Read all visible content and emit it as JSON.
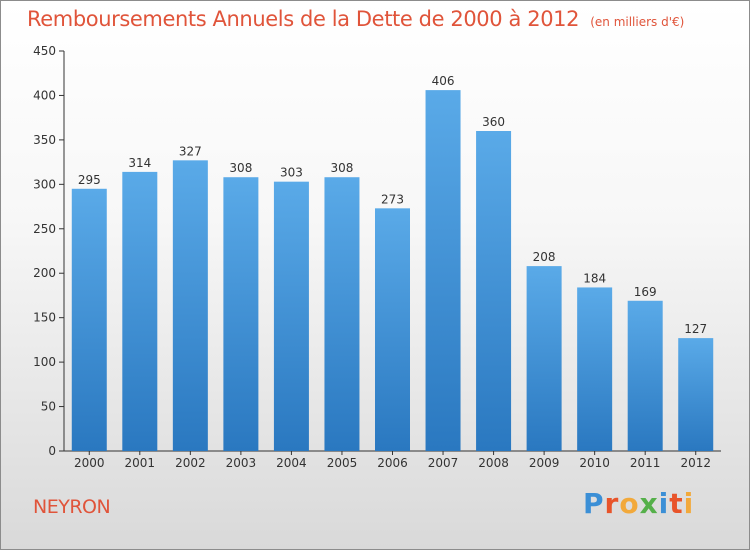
{
  "chart_data": {
    "type": "bar",
    "title": "Remboursements Annuels de la Dette de 2000 à 2012",
    "unit": "(en milliers d'€)",
    "categories": [
      "2000",
      "2001",
      "2002",
      "2003",
      "2004",
      "2005",
      "2006",
      "2007",
      "2008",
      "2009",
      "2010",
      "2011",
      "2012"
    ],
    "values": [
      295,
      314,
      327,
      308,
      303,
      308,
      273,
      406,
      360,
      208,
      184,
      169,
      127
    ],
    "ylim": [
      0,
      450
    ],
    "yticks": [
      0,
      50,
      100,
      150,
      200,
      250,
      300,
      350,
      400,
      450
    ],
    "grid": false,
    "bar_color": "#4a9ede"
  },
  "footer": {
    "city": "NEYRON",
    "logo_text": "Proxiti",
    "logo_colors": [
      "#3b8fd6",
      "#e8542a",
      "#f2a93b",
      "#55b04a",
      "#3b8fd6",
      "#e8542a",
      "#f2a93b"
    ]
  },
  "theme": {
    "title_color": "#e0543a",
    "axis_color": "#333333"
  }
}
